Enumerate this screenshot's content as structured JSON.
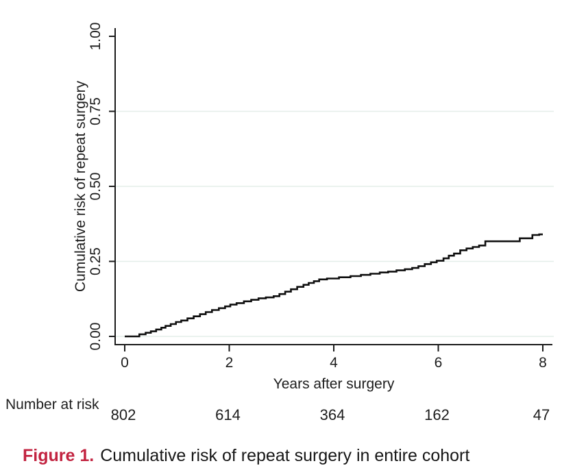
{
  "figure": {
    "caption_label": "Figure 1.",
    "caption_text": "Cumulative risk of repeat surgery in entire cohort",
    "caption_label_color": "#c22340"
  },
  "chart_data": {
    "type": "line",
    "subtype": "kaplan-meier-failure-step-curve",
    "title": "",
    "xlabel": "Years after surgery",
    "ylabel": "Cumulative risk of repeat surgery",
    "xlim": [
      0,
      8
    ],
    "ylim": [
      0,
      1
    ],
    "xticks": [
      0,
      2,
      4,
      6,
      8
    ],
    "yticks": [
      "0.00",
      "0.25",
      "0.50",
      "0.75",
      "1.00"
    ],
    "grid": "horizontal light, at 0.00/0.25/0.50/0.75",
    "legend": "none",
    "line_color": "#0f0f0f",
    "grid_color": "#e4eee9",
    "steps": [
      [
        0,
        0
      ],
      [
        0.28,
        0.007
      ],
      [
        0.4,
        0.012
      ],
      [
        0.5,
        0.017
      ],
      [
        0.6,
        0.023
      ],
      [
        0.7,
        0.029
      ],
      [
        0.78,
        0.035
      ],
      [
        0.88,
        0.041
      ],
      [
        0.98,
        0.048
      ],
      [
        1.08,
        0.053
      ],
      [
        1.2,
        0.06
      ],
      [
        1.32,
        0.067
      ],
      [
        1.44,
        0.074
      ],
      [
        1.55,
        0.081
      ],
      [
        1.67,
        0.088
      ],
      [
        1.8,
        0.094
      ],
      [
        1.92,
        0.1
      ],
      [
        2.02,
        0.106
      ],
      [
        2.14,
        0.111
      ],
      [
        2.28,
        0.117
      ],
      [
        2.42,
        0.122
      ],
      [
        2.56,
        0.127
      ],
      [
        2.7,
        0.13
      ],
      [
        2.85,
        0.134
      ],
      [
        2.96,
        0.141
      ],
      [
        3.07,
        0.149
      ],
      [
        3.18,
        0.157
      ],
      [
        3.3,
        0.165
      ],
      [
        3.42,
        0.172
      ],
      [
        3.52,
        0.178
      ],
      [
        3.62,
        0.184
      ],
      [
        3.72,
        0.19
      ],
      [
        3.87,
        0.193
      ],
      [
        4.1,
        0.197
      ],
      [
        4.32,
        0.201
      ],
      [
        4.52,
        0.205
      ],
      [
        4.7,
        0.209
      ],
      [
        4.88,
        0.213
      ],
      [
        5.04,
        0.216
      ],
      [
        5.2,
        0.22
      ],
      [
        5.36,
        0.224
      ],
      [
        5.5,
        0.228
      ],
      [
        5.62,
        0.234
      ],
      [
        5.74,
        0.241
      ],
      [
        5.86,
        0.247
      ],
      [
        5.97,
        0.252
      ],
      [
        6.1,
        0.26
      ],
      [
        6.2,
        0.269
      ],
      [
        6.3,
        0.276
      ],
      [
        6.42,
        0.287
      ],
      [
        6.54,
        0.293
      ],
      [
        6.66,
        0.298
      ],
      [
        6.78,
        0.303
      ],
      [
        6.9,
        0.317
      ],
      [
        7.56,
        0.327
      ],
      [
        7.8,
        0.338
      ],
      [
        7.93,
        0.34
      ]
    ],
    "at_risk": {
      "label": "Number at risk",
      "times": [
        0,
        2,
        4,
        6,
        8
      ],
      "counts": [
        "802",
        "614",
        "364",
        "162",
        "47"
      ]
    }
  }
}
